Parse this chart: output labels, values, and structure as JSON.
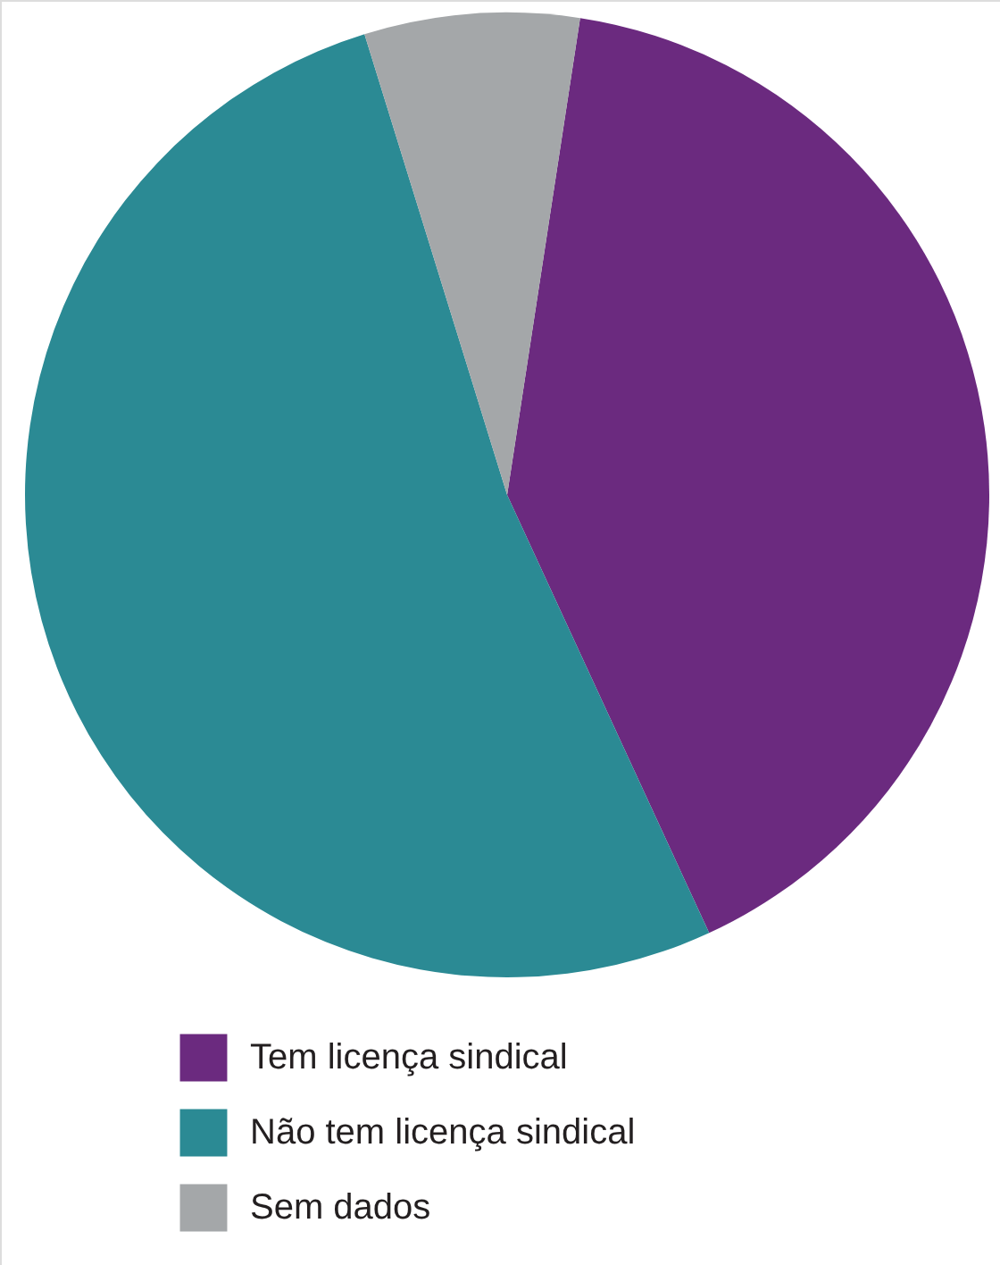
{
  "chart_data": {
    "type": "pie",
    "categories": [
      "Tem licença sindical",
      "Não tem licença sindical",
      "Sem dados"
    ],
    "values": [
      40.7,
      52.1,
      7.2
    ],
    "colors": [
      "#6b2a7f",
      "#2b8a94",
      "#a4a7a9"
    ],
    "legend": "bottom"
  }
}
